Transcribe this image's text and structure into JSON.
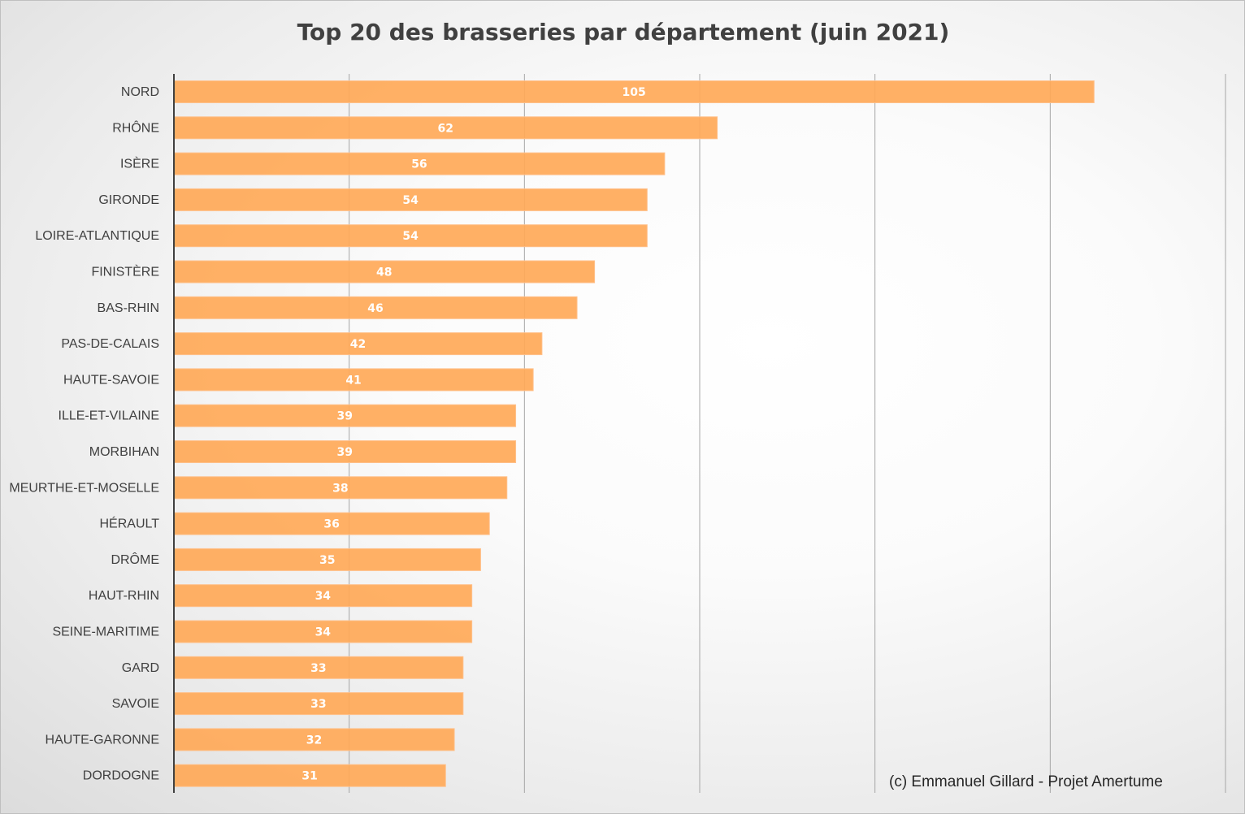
{
  "chart_data": {
    "type": "bar",
    "orientation": "horizontal",
    "title": "Top 20 des brasseries par département (juin 2021)",
    "categories": [
      "NORD",
      "RHÔNE",
      "ISÈRE",
      "GIRONDE",
      "LOIRE-ATLANTIQUE",
      "FINISTÈRE",
      "BAS-RHIN",
      "PAS-DE-CALAIS",
      "HAUTE-SAVOIE",
      "ILLE-ET-VILAINE",
      "MORBIHAN",
      "MEURTHE-ET-MOSELLE",
      "HÉRAULT",
      "DRÔME",
      "HAUT-RHIN",
      "SEINE-MARITIME",
      "GARD",
      "SAVOIE",
      "HAUTE-GARONNE",
      "DORDOGNE"
    ],
    "values": [
      105,
      62,
      56,
      54,
      54,
      48,
      46,
      42,
      41,
      39,
      39,
      38,
      36,
      35,
      34,
      34,
      33,
      33,
      32,
      31
    ],
    "xlim": [
      0,
      120
    ],
    "x_gridline_step": 20,
    "grid": true,
    "data_labels": true,
    "bar_color": "#ffa958",
    "annotation": "(c) Emmanuel Gillard - Projet Amertume"
  }
}
